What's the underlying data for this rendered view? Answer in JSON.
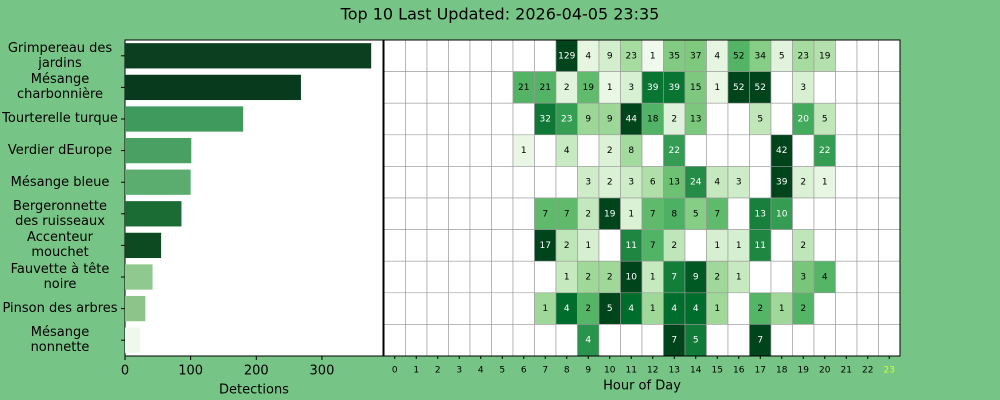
{
  "title": "Top 10 Last Updated: 2026-04-05 23:35",
  "chart_data": [
    {
      "type": "barh",
      "categories": [
        "Grimpereau des jardins",
        "Mésange charbonnière",
        "Tourterelle turque",
        "Verdier dEurope",
        "Mésange bleue",
        "Bergeronnette des ruisseaux",
        "Accenteur mouchet",
        "Fauvette à tête noire",
        "Pinson des arbres",
        "Mésange nonnette"
      ],
      "values": [
        375,
        268,
        180,
        101,
        100,
        86,
        55,
        42,
        31,
        23
      ],
      "colors": [
        "#0b3f20",
        "#083a1d",
        "#3f9a5e",
        "#4aa062",
        "#5aad6e",
        "#1b6b34",
        "#0d4a22",
        "#90c98f",
        "#8cc48a",
        "#eef8ec"
      ],
      "xlim": [
        0,
        393
      ],
      "xticks": [
        0,
        100,
        200,
        300
      ],
      "xlabel": "Detections"
    },
    {
      "type": "heatmap",
      "x": [
        0,
        1,
        2,
        3,
        4,
        5,
        6,
        7,
        8,
        9,
        10,
        11,
        12,
        13,
        14,
        15,
        16,
        17,
        18,
        19,
        20,
        21,
        22,
        23
      ],
      "xlabel": "Hour of Day",
      "highlight_tick": 23,
      "highlight_color": "#ccff33",
      "colorscale": [
        "#f7fcf5",
        "#e5f5e0",
        "#c7e9c0",
        "#a1d99b",
        "#74c476",
        "#41ab5d",
        "#238b45",
        "#006d2c",
        "#00441b"
      ],
      "values": [
        [
          null,
          null,
          null,
          null,
          null,
          null,
          null,
          null,
          129,
          4,
          9,
          23,
          1,
          35,
          37,
          4,
          52,
          34,
          5,
          23,
          19,
          null,
          null,
          null
        ],
        [
          null,
          null,
          null,
          null,
          null,
          null,
          21,
          21,
          2,
          19,
          1,
          3,
          39,
          39,
          15,
          1,
          52,
          52,
          null,
          3,
          null,
          null,
          null,
          null
        ],
        [
          null,
          null,
          null,
          null,
          null,
          null,
          null,
          32,
          23,
          9,
          9,
          44,
          18,
          2,
          13,
          null,
          null,
          5,
          null,
          20,
          5,
          null,
          null,
          null
        ],
        [
          null,
          null,
          null,
          null,
          null,
          null,
          1,
          null,
          4,
          null,
          2,
          8,
          null,
          22,
          null,
          null,
          null,
          null,
          42,
          null,
          22,
          null,
          null,
          null
        ],
        [
          null,
          null,
          null,
          null,
          null,
          null,
          null,
          null,
          null,
          3,
          2,
          3,
          6,
          13,
          24,
          4,
          3,
          null,
          39,
          2,
          1,
          null,
          null,
          null
        ],
        [
          null,
          null,
          null,
          null,
          null,
          null,
          null,
          7,
          7,
          2,
          19,
          1,
          7,
          8,
          5,
          7,
          null,
          13,
          10,
          null,
          null,
          null,
          null,
          null
        ],
        [
          null,
          null,
          null,
          null,
          null,
          null,
          null,
          17,
          2,
          1,
          null,
          11,
          7,
          2,
          null,
          1,
          1,
          11,
          null,
          2,
          null,
          null,
          null,
          null
        ],
        [
          null,
          null,
          null,
          null,
          null,
          null,
          null,
          null,
          1,
          2,
          2,
          10,
          1,
          7,
          9,
          2,
          1,
          null,
          null,
          3,
          4,
          null,
          null,
          null
        ],
        [
          null,
          null,
          null,
          null,
          null,
          null,
          null,
          1,
          4,
          2,
          5,
          4,
          1,
          4,
          4,
          1,
          null,
          2,
          1,
          2,
          null,
          null,
          null,
          null
        ],
        [
          null,
          null,
          null,
          null,
          null,
          null,
          null,
          null,
          null,
          4,
          null,
          null,
          null,
          7,
          5,
          null,
          null,
          7,
          null,
          null,
          null,
          null,
          null,
          null
        ]
      ]
    }
  ]
}
